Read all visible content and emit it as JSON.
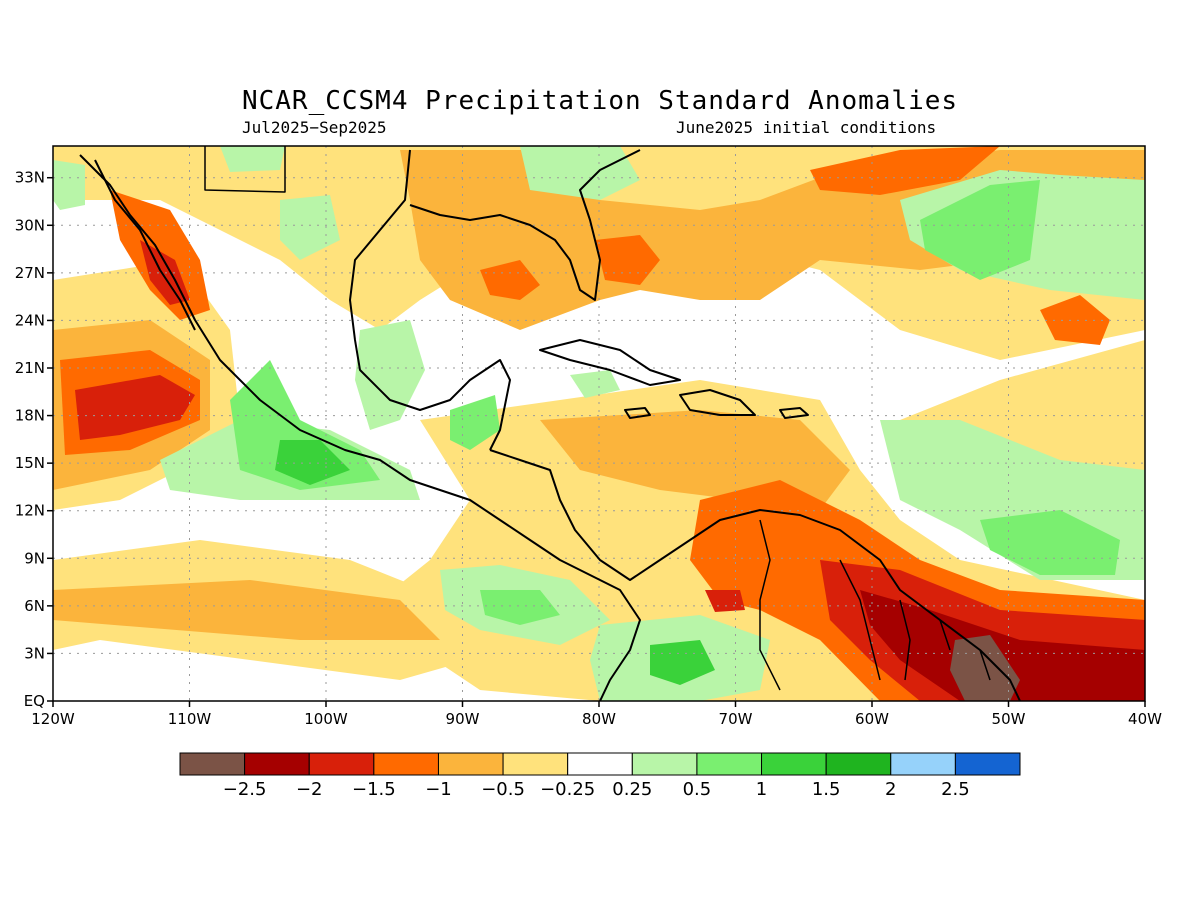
{
  "map": {
    "title": "NCAR_CCSM4 Precipitation Standard Anomalies",
    "period": "Jul2025−Sep2025",
    "initial_conditions": "June2025 initial conditions",
    "lon_ticks": [
      "120W",
      "110W",
      "100W",
      "90W",
      "80W",
      "70W",
      "60W",
      "50W",
      "40W"
    ],
    "lat_ticks": [
      "EQ",
      "3N",
      "6N",
      "9N",
      "12N",
      "15N",
      "18N",
      "21N",
      "24N",
      "27N",
      "30N",
      "33N"
    ],
    "lon_range": [
      -120,
      -40
    ],
    "lat_range": [
      0,
      35
    ],
    "grid": "dotted"
  },
  "colorbar": {
    "colors": [
      "#7b5346",
      "#a50000",
      "#d8200a",
      "#ff6a00",
      "#fbb43c",
      "#ffe27c",
      "#ffffff",
      "#b8f5a8",
      "#7aef70",
      "#3ad23a",
      "#1fb41f",
      "#96d2fa",
      "#1464d2"
    ],
    "labels": [
      "−2.5",
      "−2",
      "−1.5",
      "−1",
      "−0.5",
      "−0.25",
      "0.25",
      "0.5",
      "1",
      "1.5",
      "2",
      "2.5"
    ]
  }
}
